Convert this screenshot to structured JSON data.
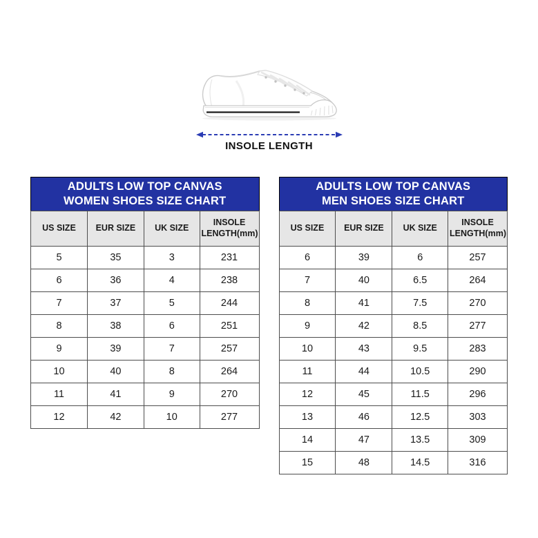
{
  "hero": {
    "shoe_image": "white-low-top-canvas-shoe",
    "insole_label": "INSOLE LENGTH"
  },
  "colors": {
    "banner_blue": "#2232A2",
    "arrow_blue": "#2B3CB4",
    "header_row_gray": "#E6E6E6",
    "grid_border": "#4C4C4C",
    "sole_stripe_black": "#1C1C1C"
  },
  "tables": [
    {
      "name": "women",
      "title_line1": "ADULTS LOW TOP CANVAS",
      "title_line2": "WOMEN SHOES SIZE CHART",
      "columns": [
        "US SIZE",
        "EUR SIZE",
        "UK SIZE",
        "INSOLE LENGTH(mm)"
      ],
      "rows": [
        [
          "5",
          "35",
          "3",
          "231"
        ],
        [
          "6",
          "36",
          "4",
          "238"
        ],
        [
          "7",
          "37",
          "5",
          "244"
        ],
        [
          "8",
          "38",
          "6",
          "251"
        ],
        [
          "9",
          "39",
          "7",
          "257"
        ],
        [
          "10",
          "40",
          "8",
          "264"
        ],
        [
          "11",
          "41",
          "9",
          "270"
        ],
        [
          "12",
          "42",
          "10",
          "277"
        ]
      ]
    },
    {
      "name": "men",
      "title_line1": "ADULTS LOW TOP CANVAS",
      "title_line2": "MEN SHOES SIZE CHART",
      "columns": [
        "US SIZE",
        "EUR SIZE",
        "UK SIZE",
        "INSOLE LENGTH(mm)"
      ],
      "rows": [
        [
          "6",
          "39",
          "6",
          "257"
        ],
        [
          "7",
          "40",
          "6.5",
          "264"
        ],
        [
          "8",
          "41",
          "7.5",
          "270"
        ],
        [
          "9",
          "42",
          "8.5",
          "277"
        ],
        [
          "10",
          "43",
          "9.5",
          "283"
        ],
        [
          "11",
          "44",
          "10.5",
          "290"
        ],
        [
          "12",
          "45",
          "11.5",
          "296"
        ],
        [
          "13",
          "46",
          "12.5",
          "303"
        ],
        [
          "14",
          "47",
          "13.5",
          "309"
        ],
        [
          "15",
          "48",
          "14.5",
          "316"
        ]
      ]
    }
  ]
}
